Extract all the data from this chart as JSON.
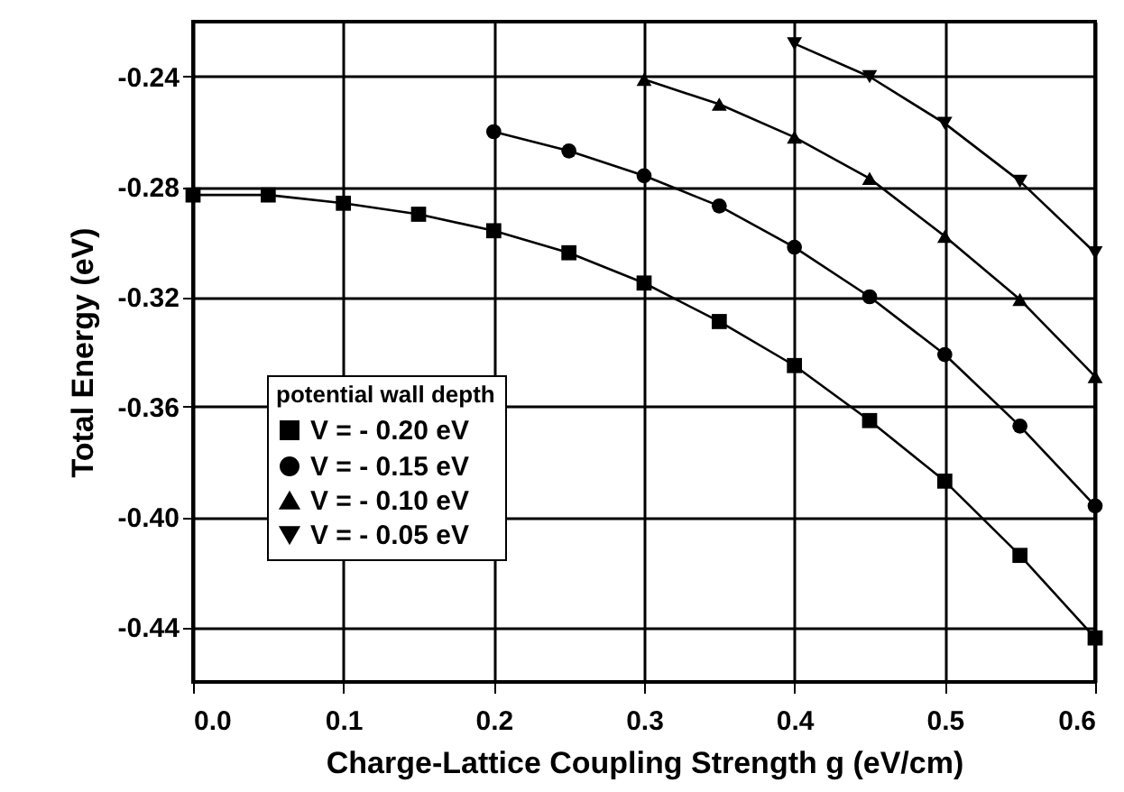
{
  "chart_data": {
    "type": "line",
    "xlabel": "Charge-Lattice Coupling Strength g (eV/cm)",
    "ylabel": "Total Energy (eV)",
    "legend_title": "potential wall depth",
    "x": [
      0,
      0.05,
      0.1,
      0.15,
      0.2,
      0.25,
      0.3,
      0.35,
      0.4,
      0.45,
      0.5,
      0.55,
      0.6
    ],
    "series": [
      {
        "name": "V = - 0.20 eV",
        "color": "#000000",
        "marker": "square",
        "values": [
          -0.283,
          -0.283,
          -0.286,
          -0.29,
          -0.296,
          -0.304,
          -0.315,
          -0.329,
          -0.345,
          -0.365,
          -0.387,
          -0.414,
          -0.444
        ]
      },
      {
        "name": "V = - 0.15 eV",
        "color": "#000000",
        "marker": "circle",
        "values": [
          null,
          null,
          null,
          null,
          -0.26,
          -0.267,
          -0.276,
          -0.287,
          -0.302,
          -0.32,
          -0.341,
          -0.367,
          -0.396
        ]
      },
      {
        "name": "V = - 0.10 eV",
        "color": "#000000",
        "marker": "triangle",
        "values": [
          null,
          null,
          null,
          null,
          null,
          null,
          -0.241,
          -0.25,
          -0.262,
          -0.277,
          -0.298,
          -0.321,
          -0.349
        ]
      },
      {
        "name": "V = - 0.05 eV",
        "color": "#000000",
        "marker": "triangle-down",
        "values": [
          null,
          null,
          null,
          null,
          null,
          null,
          null,
          null,
          -0.228,
          -0.24,
          -0.257,
          -0.278,
          -0.304
        ]
      }
    ],
    "xlim": [
      0,
      0.6
    ],
    "xticks": [
      {
        "value": 0,
        "label": "0.0"
      },
      0.1,
      0.2,
      0.3,
      0.4,
      0.5,
      0.6
    ],
    "ylim": [
      -0.46,
      -0.22
    ],
    "yticks": [
      -0.44,
      {
        "value": -0.4,
        "label": "-0.40"
      },
      -0.36,
      -0.32,
      -0.28,
      -0.24
    ],
    "grid": true,
    "legend": "bottom left",
    "line_style": "solid"
  }
}
